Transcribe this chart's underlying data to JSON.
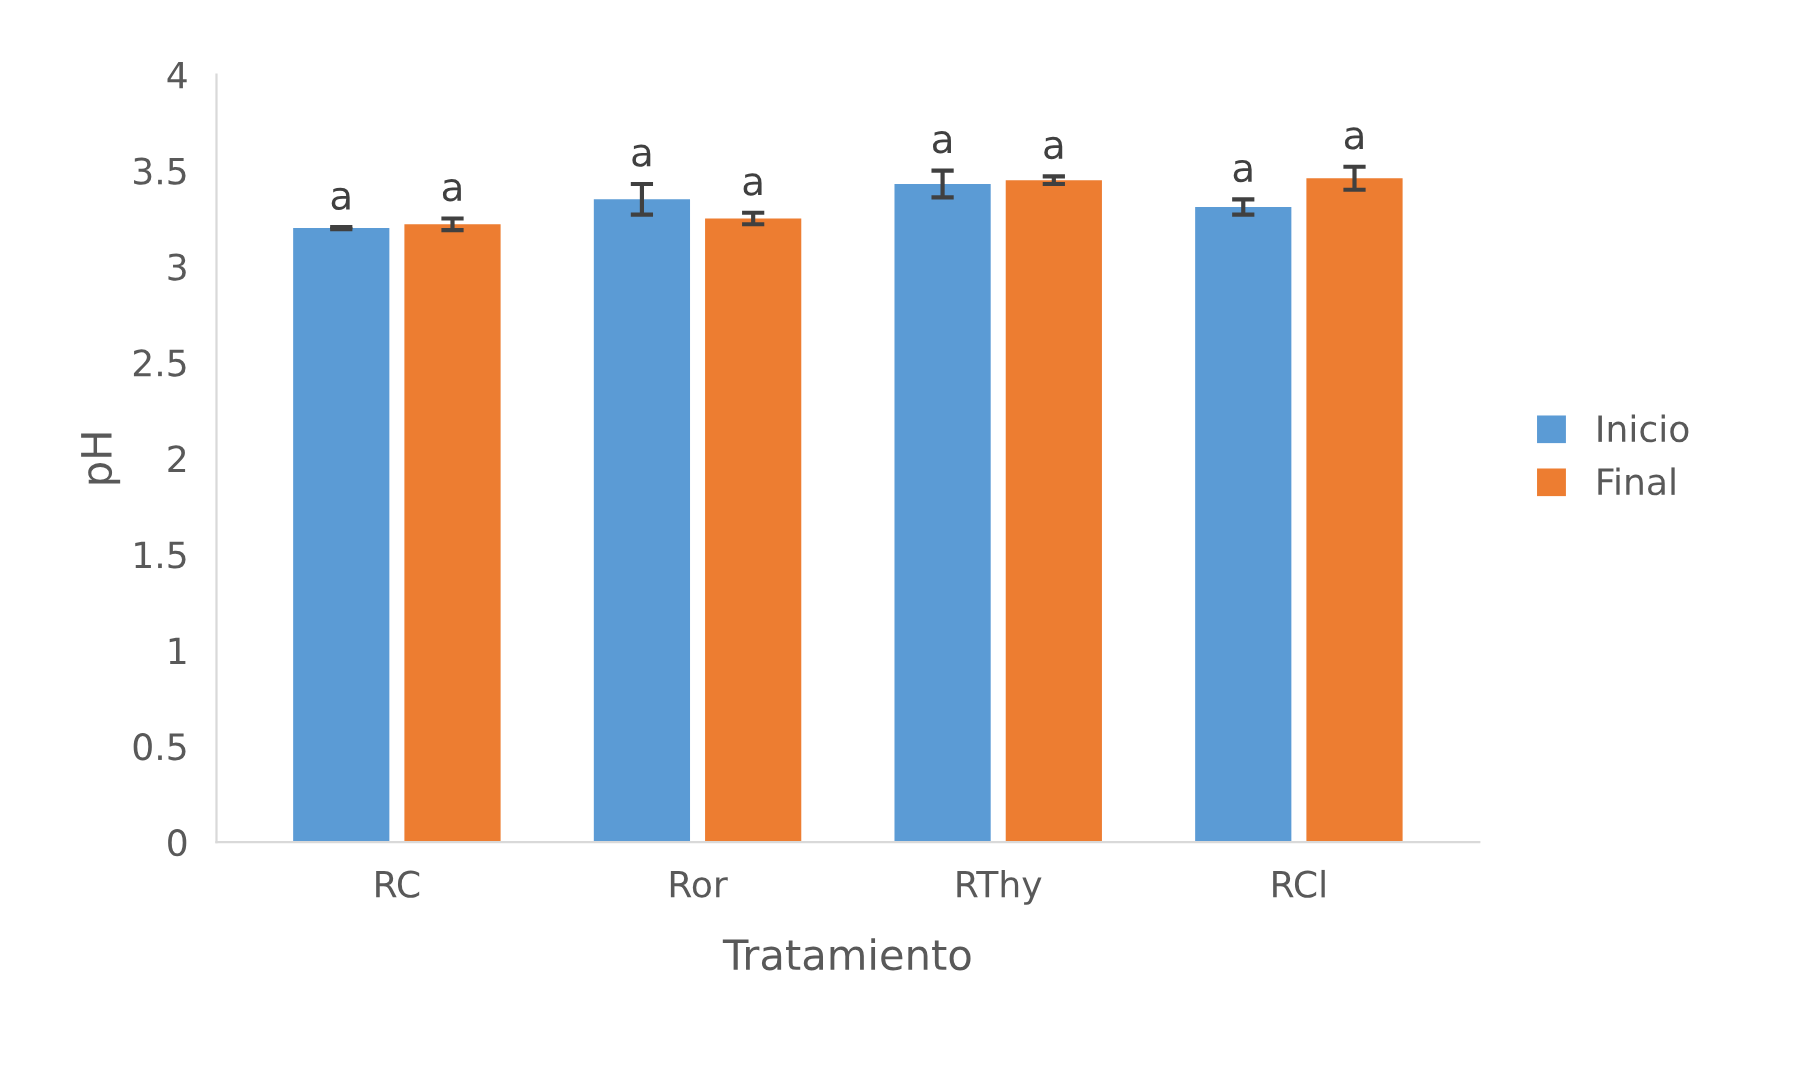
{
  "chart_data": {
    "type": "bar",
    "xlabel": "Tratamiento",
    "ylabel": "pH",
    "categories": [
      "RC",
      "Ror",
      "RThy",
      "RCl"
    ],
    "series": [
      {
        "name": "Inicio",
        "color": "#5b9bd5",
        "values": [
          3.2,
          3.35,
          3.43,
          3.31
        ],
        "errors": [
          0.005,
          0.08,
          0.07,
          0.04
        ],
        "value_labels": [
          "a",
          "a",
          "a",
          "a"
        ]
      },
      {
        "name": "Final",
        "color": "#ed7d31",
        "values": [
          3.22,
          3.25,
          3.45,
          3.46
        ],
        "errors": [
          0.03,
          0.03,
          0.02,
          0.06
        ],
        "value_labels": [
          "a",
          "a",
          "a",
          "a"
        ]
      }
    ],
    "ylim": [
      0,
      4
    ],
    "yticks": [
      0,
      0.5,
      1,
      1.5,
      2,
      2.5,
      3,
      3.5,
      4
    ],
    "grid": false,
    "legend": "right"
  }
}
